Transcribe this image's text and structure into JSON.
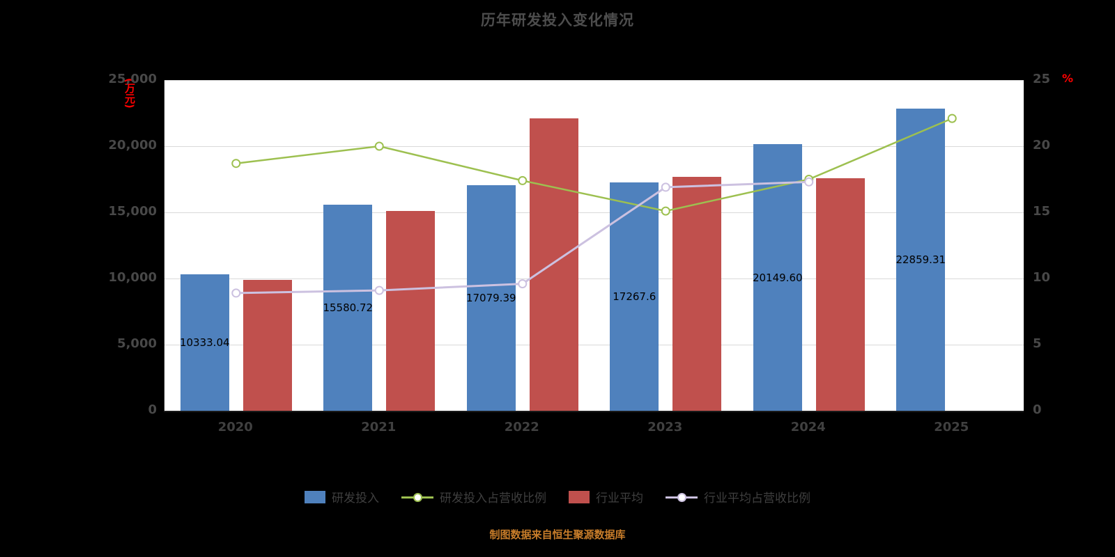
{
  "title": "历年研发投入变化情况",
  "footer": "制图数据来自恒生聚源数据库",
  "left_axis": {
    "unit": "(万元)",
    "ticks": [
      "0",
      "5,000",
      "10,000",
      "15,000",
      "20,000",
      "25,000"
    ]
  },
  "right_axis": {
    "unit": "%",
    "ticks": [
      "0",
      "5",
      "10",
      "15",
      "20",
      "25"
    ]
  },
  "colors": {
    "page_bg": "#000000",
    "plot_bg": "#ffffff",
    "blue_bar": "#4f81bd",
    "red_bar": "#c0504d",
    "green_line": "#9dc050",
    "lavender_line": "#ccc1e0",
    "unit_text": "#ff0000",
    "footer_text": "#c87d2a",
    "grid": "#d9d9d9"
  },
  "chart_data": {
    "type": "combo",
    "title": "历年研发投入变化情况",
    "categories": [
      "2020",
      "2021",
      "2022",
      "2023",
      "2024",
      "2025"
    ],
    "ylim_left": [
      0,
      25000
    ],
    "ylim_right": [
      0,
      25
    ],
    "grid": true,
    "legend_position": "bottom",
    "series": [
      {
        "name": "研发投入",
        "key": "rd-investment",
        "type": "bar",
        "axis": "left",
        "color": "#4f81bd",
        "values": [
          10333.04,
          15580.72,
          17079.39,
          17267.6,
          20149.6,
          22859.31
        ],
        "labels": [
          "10333.04",
          "15580.72",
          "17079.39",
          "17267.6",
          "20149.60",
          "22859.31"
        ]
      },
      {
        "name": "行业平均",
        "key": "industry-average",
        "type": "bar",
        "axis": "left",
        "color": "#c0504d",
        "values": [
          9900,
          15100,
          22100,
          17700,
          17600,
          null
        ],
        "labels": [
          "",
          "",
          "",
          "",
          "",
          ""
        ]
      },
      {
        "name": "研发投入占营收比例",
        "key": "rd-ratio",
        "type": "line",
        "axis": "right",
        "color": "#9dc050",
        "width": 2.5,
        "values": [
          18.7,
          20.0,
          17.4,
          15.1,
          17.5,
          22.1
        ]
      },
      {
        "name": "行业平均占营收比例",
        "key": "industry-ratio",
        "type": "line",
        "axis": "right",
        "color": "#ccc1e0",
        "width": 3,
        "values": [
          8.9,
          9.1,
          9.6,
          16.9,
          17.3,
          null
        ]
      }
    ]
  },
  "legend": [
    {
      "label": "研发投入",
      "kind": "bar",
      "color": "#4f81bd"
    },
    {
      "label": "研发投入占营收比例",
      "kind": "line",
      "color": "#9dc050"
    },
    {
      "label": "行业平均",
      "kind": "bar",
      "color": "#c0504d"
    },
    {
      "label": "行业平均占营收比例",
      "kind": "line",
      "color": "#ccc1e0"
    }
  ]
}
